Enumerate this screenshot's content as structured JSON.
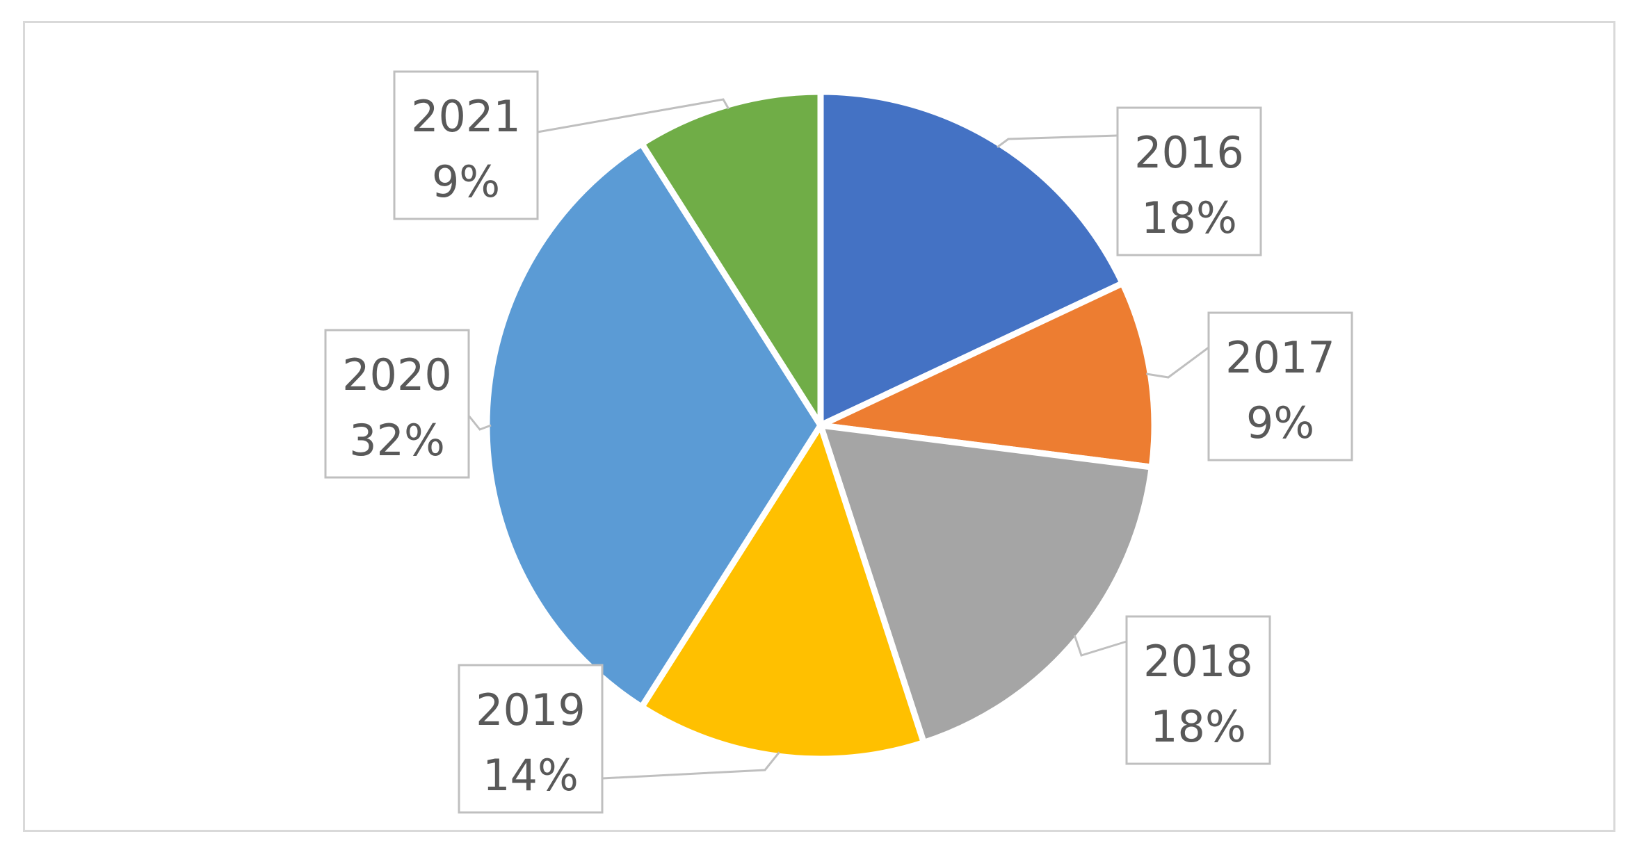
{
  "chart_data": {
    "type": "pie",
    "title": "",
    "slices": [
      {
        "label": "2016",
        "value": 18,
        "value_label": "18%",
        "color": "#4472C4"
      },
      {
        "label": "2017",
        "value": 9,
        "value_label": "9%",
        "color": "#ED7D31"
      },
      {
        "label": "2018",
        "value": 18,
        "value_label": "18%",
        "color": "#A5A5A5"
      },
      {
        "label": "2019",
        "value": 14,
        "value_label": "14%",
        "color": "#FFC000"
      },
      {
        "label": "2020",
        "value": 32,
        "value_label": "32%",
        "color": "#5B9BD5"
      },
      {
        "label": "2021",
        "value": 9,
        "value_label": "9%",
        "color": "#70AD47"
      }
    ],
    "start_angle": "12 o'clock",
    "direction": "clockwise",
    "legend": "none",
    "data_labels": "callouts"
  }
}
